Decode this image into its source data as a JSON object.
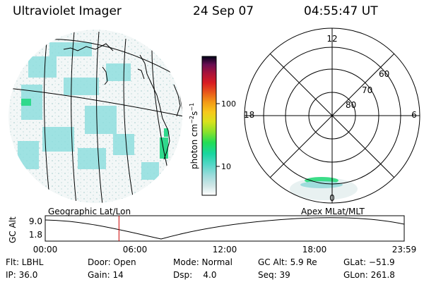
{
  "header": {
    "instrument": "Ultraviolet Imager",
    "date": "24 Sep 07",
    "time": "04:55:47 UT"
  },
  "colorbar": {
    "label": "photon cm",
    "label_exp1": "−2",
    "label_mid": "s",
    "label_exp2": "−1",
    "ticks": [
      "100",
      "10"
    ],
    "scale": "log",
    "colors": [
      "#ffffff",
      "#cfe6e6",
      "#9fdcdc",
      "#55d7c8",
      "#19d6a0",
      "#22dd55",
      "#8ee22a",
      "#d9e21c",
      "#f7c81b",
      "#f39a16",
      "#e8581a",
      "#d81c22",
      "#a8123a",
      "#6a0e52",
      "#2a0a3a",
      "#000018"
    ]
  },
  "polar_plot": {
    "hour_labels": [
      "12",
      "18",
      "6",
      "0"
    ],
    "lat_labels": [
      "60",
      "70",
      "80"
    ]
  },
  "altitude_strip": {
    "ylabel": "GC Alt",
    "left_title": "Geographic Lat/Lon",
    "right_title": "Apex MLat/MLT",
    "y_ticks": [
      "9.0",
      "1.8"
    ],
    "x_ticks": [
      "00:00",
      "06:00",
      "12:00",
      "18:00",
      "23:59"
    ],
    "current_time_hours": 4.93,
    "marker_color": "#cc0000"
  },
  "status": {
    "flt": "Flt: LBHL",
    "door": "Door: Open",
    "mode": "Mode: Normal",
    "gc_alt": "GC Alt: 5.9 Re",
    "glat": "GLat: −51.9",
    "ip": "IP: 36.0",
    "gain": "Gain: 14",
    "dsp": "Dsp:    4.0",
    "seq": "Seq: 39",
    "glon": "GLon: 261.8"
  }
}
